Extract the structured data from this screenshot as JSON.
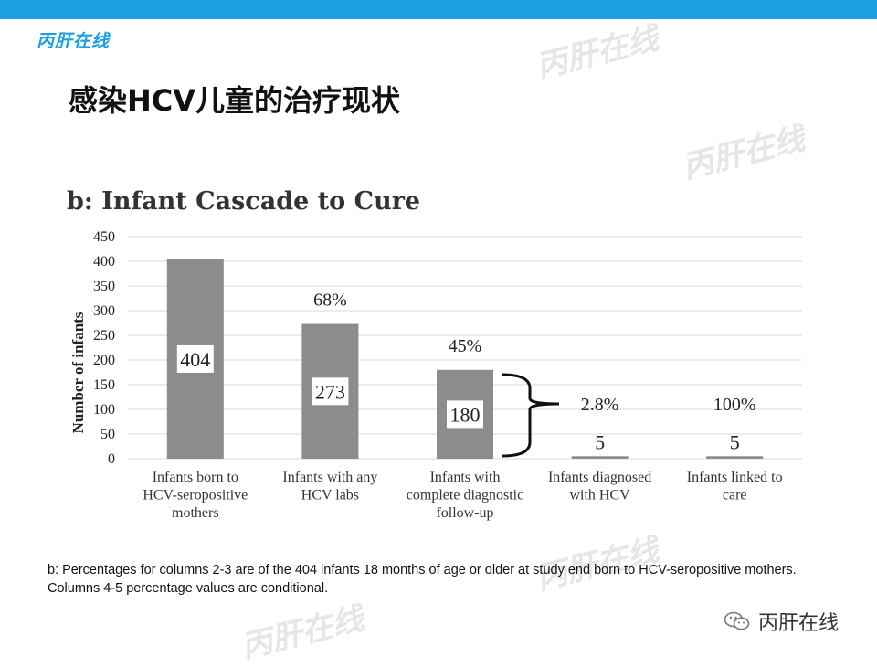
{
  "header": {
    "brand": "丙肝在线"
  },
  "watermark": "丙肝在线",
  "slide": {
    "title": "感染HCV儿童的治疗现状"
  },
  "chart_data": {
    "type": "bar",
    "title": "b: Infant Cascade to Cure",
    "ylabel": "Number of infants",
    "xlabel": "",
    "ylim": [
      0,
      450
    ],
    "yticks": [
      0,
      50,
      100,
      150,
      200,
      250,
      300,
      350,
      400,
      450
    ],
    "grid": true,
    "categories": [
      [
        "Infants born to",
        "HCV-seropositive",
        "mothers"
      ],
      [
        "Infants with any",
        "HCV labs"
      ],
      [
        "Infants with",
        "complete diagnostic",
        "follow-up"
      ],
      [
        "Infants diagnosed",
        "with HCV"
      ],
      [
        "Infants linked to",
        "care"
      ]
    ],
    "values": [
      404,
      273,
      180,
      5,
      5
    ],
    "percent_labels": [
      "",
      "68%",
      "45%",
      "2.8%",
      "100%"
    ],
    "bar_color": "#8c8c8c",
    "annotations": [
      "brace from 'Infants with complete diagnostic follow-up' to 'Infants diagnosed with HCV'"
    ]
  },
  "footnote": "b: Percentages for columns 2-3 are of the 404 infants 18 months of age or older at study end born to HCV-seropositive mothers. Columns 4-5 percentage values are conditional.",
  "badge": {
    "icon": "wechat-icon",
    "label": "丙肝在线"
  },
  "colors": {
    "accent": "#1a9fe0",
    "bar": "#8c8c8c"
  }
}
